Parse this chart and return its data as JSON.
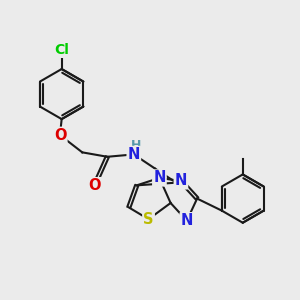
{
  "background_color": "#ebebeb",
  "bond_color": "#1a1a1a",
  "bond_lw": 1.5,
  "atom_colors": {
    "Cl": "#00cc00",
    "O": "#dd0000",
    "N": "#2222dd",
    "S": "#bbbb00",
    "H": "#5599aa",
    "C": "#1a1a1a"
  },
  "fs": 10.5
}
